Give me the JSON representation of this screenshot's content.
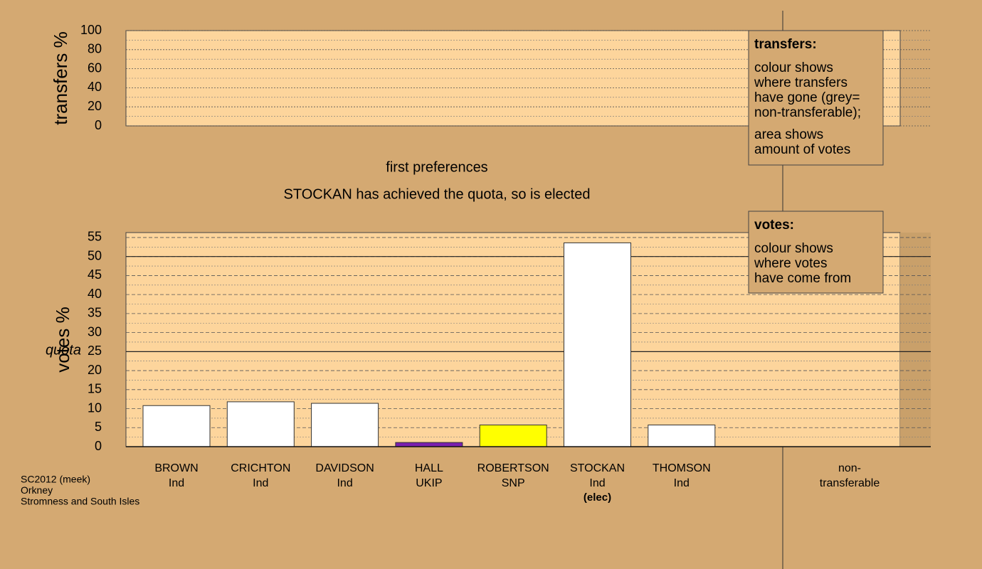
{
  "chart_data": [
    {
      "type": "bar",
      "ylabel": "transfers %",
      "ylim": [
        0,
        100
      ],
      "yticks": [
        0,
        20,
        40,
        60,
        80,
        100
      ],
      "grid": true
    },
    {
      "type": "bar",
      "title": "first preferences",
      "subtitle": "STOCKAN has achieved the quota, so is elected",
      "ylabel": "votes %",
      "categories": [
        "BROWN",
        "CRICHTON",
        "DAVIDSON",
        "HALL",
        "ROBERTSON",
        "STOCKAN",
        "THOMSON"
      ],
      "parties": [
        "Ind",
        "Ind",
        "Ind",
        "UKIP",
        "SNP",
        "Ind",
        "Ind"
      ],
      "notes": [
        null,
        null,
        null,
        null,
        null,
        "(elec)",
        null
      ],
      "values": [
        10.8,
        11.8,
        11.4,
        1.1,
        5.7,
        53.6,
        5.7
      ],
      "colors": [
        "#ffffff",
        "#ffffff",
        "#ffffff",
        "#7a1fb0",
        "#ffff00",
        "#ffffff",
        "#ffffff"
      ],
      "nontransferable_label": [
        "non-",
        "transferable"
      ],
      "quota": {
        "value": 25,
        "label": "quota"
      },
      "solid_lines": [
        25,
        50
      ],
      "ylim": [
        0,
        56.3
      ],
      "yticks": [
        0,
        5,
        10,
        15,
        20,
        25,
        30,
        35,
        40,
        45,
        50,
        55
      ],
      "grid": true
    }
  ],
  "legend_boxes": [
    {
      "title": "transfers:",
      "paragraphs": [
        [
          "colour shows",
          "where transfers",
          "have gone (grey=",
          "non-transferable);"
        ],
        [
          "area shows",
          "amount of votes"
        ]
      ]
    },
    {
      "title": "votes:",
      "paragraphs": [
        [
          "colour shows",
          "where votes",
          "have come from"
        ]
      ]
    }
  ],
  "footer": [
    "SC2012 (meek)",
    "Orkney",
    "Stromness and South Isles"
  ]
}
